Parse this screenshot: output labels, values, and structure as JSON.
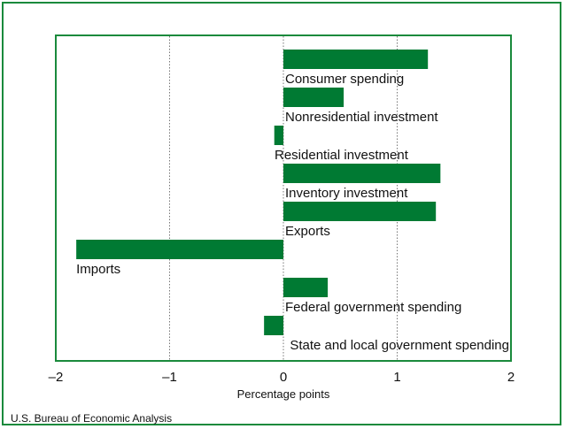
{
  "colors": {
    "bar": "#007a33",
    "frame": "#1a8a3c",
    "grid": "#555555"
  },
  "source_note": "U.S. Bureau of Economic Analysis",
  "chart_data": {
    "type": "bar",
    "orientation": "horizontal",
    "categories": [
      "Consumer spending",
      "Nonresidential investment",
      "Residential investment",
      "Inventory investment",
      "Exports",
      "Imports",
      "Federal government spending",
      "State and local government spending"
    ],
    "values": [
      1.27,
      0.53,
      -0.08,
      1.38,
      1.34,
      -1.82,
      0.39,
      -0.17
    ],
    "xlabel": "Percentage points",
    "xlim": [
      -2,
      2
    ],
    "xticks": [
      -2,
      -1,
      0,
      1,
      2
    ],
    "xtick_labels": [
      "–2",
      "–1",
      "0",
      "1",
      "2"
    ],
    "grid": "vertical dotted"
  }
}
